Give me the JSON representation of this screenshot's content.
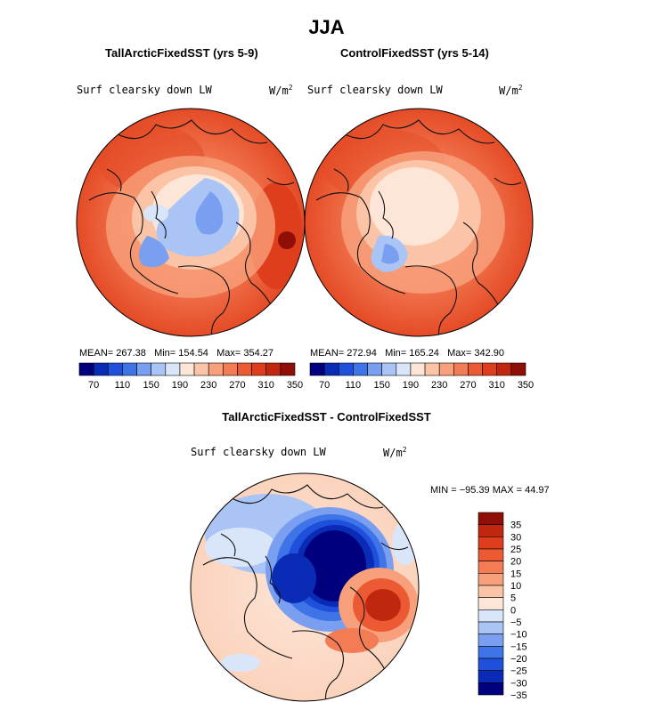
{
  "figure": {
    "season_title": "JJA",
    "panels": [
      {
        "title": "TallArcticFixedSST (yrs 5-9)",
        "variable": "Surf clearsky down LW",
        "units_base": "W/m",
        "units_exp": "2",
        "stats": {
          "mean_label": "MEAN= 267.38",
          "min_label": "Min= 154.54",
          "max_label": "Max= 354.27"
        }
      },
      {
        "title": "ControlFixedSST (yrs 5-14)",
        "variable": "Surf clearsky down LW",
        "units_base": "W/m",
        "units_exp": "2",
        "stats": {
          "mean_label": "MEAN= 272.94",
          "min_label": "Min= 165.24",
          "max_label": "Max= 342.90"
        }
      }
    ],
    "diff_panel": {
      "title": "TallArcticFixedSST - ControlFixedSST",
      "variable": "Surf clearsky down LW",
      "units_base": "W/m",
      "units_exp": "2",
      "minmax_label": "MIN = −95.39 MAX =  44.97"
    }
  },
  "chart_data": [
    {
      "type": "heatmap",
      "projection": "north-polar-stereographic",
      "title": "TallArcticFixedSST (yrs 5-9)",
      "field": "Surf clearsky down LW",
      "units": "W/m2",
      "mean": 267.38,
      "min": 154.54,
      "max": 354.27,
      "colorbar": {
        "orientation": "horizontal",
        "tick_labels": [
          "70",
          "110",
          "150",
          "190",
          "230",
          "270",
          "310",
          "350"
        ],
        "colors": [
          "#00007f",
          "#0a2bb5",
          "#1e50dc",
          "#3f74e8",
          "#7a9ef0",
          "#aac4f5",
          "#d9e6fa",
          "#fde6d8",
          "#fbc4a7",
          "#f7a07b",
          "#f37c55",
          "#ec5a33",
          "#de3e1c",
          "#c1270f",
          "#8f0f06"
        ]
      }
    },
    {
      "type": "heatmap",
      "projection": "north-polar-stereographic",
      "title": "ControlFixedSST (yrs 5-14)",
      "field": "Surf clearsky down LW",
      "units": "W/m2",
      "mean": 272.94,
      "min": 165.24,
      "max": 342.9,
      "colorbar": {
        "orientation": "horizontal",
        "tick_labels": [
          "70",
          "110",
          "150",
          "190",
          "230",
          "270",
          "310",
          "350"
        ],
        "colors": [
          "#00007f",
          "#0a2bb5",
          "#1e50dc",
          "#3f74e8",
          "#7a9ef0",
          "#aac4f5",
          "#d9e6fa",
          "#fde6d8",
          "#fbc4a7",
          "#f7a07b",
          "#f37c55",
          "#ec5a33",
          "#de3e1c",
          "#c1270f",
          "#8f0f06"
        ]
      }
    },
    {
      "type": "heatmap",
      "projection": "north-polar-stereographic",
      "title": "TallArcticFixedSST - ControlFixedSST",
      "field": "Surf clearsky down LW",
      "units": "W/m2",
      "min": -95.39,
      "max": 44.97,
      "colorbar": {
        "orientation": "vertical",
        "tick_labels": [
          "35",
          "30",
          "25",
          "20",
          "15",
          "10",
          "5",
          "0",
          "−5",
          "−10",
          "−15",
          "−20",
          "−25",
          "−30",
          "−35"
        ],
        "colors": [
          "#8f0f06",
          "#c1270f",
          "#de3e1c",
          "#ec5a33",
          "#f37c55",
          "#f7a07b",
          "#fbc4a7",
          "#fde6d8",
          "#d9e6fa",
          "#aac4f5",
          "#7a9ef0",
          "#3f74e8",
          "#1e50dc",
          "#0a2bb5",
          "#00007f"
        ]
      }
    }
  ]
}
